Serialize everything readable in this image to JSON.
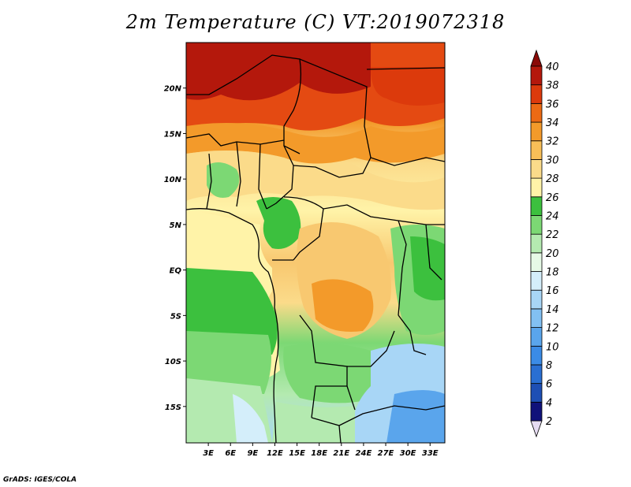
{
  "title": "2m Temperature (C) VT:2019072318",
  "credit": "GrADS: IGES/COLA",
  "map": {
    "lon_range": [
      0,
      35
    ],
    "lat_range": [
      -19,
      25
    ],
    "lon_ticks": [
      {
        "value": 3,
        "label": "3E"
      },
      {
        "value": 6,
        "label": "6E"
      },
      {
        "value": 9,
        "label": "9E"
      },
      {
        "value": 12,
        "label": "12E"
      },
      {
        "value": 15,
        "label": "15E"
      },
      {
        "value": 18,
        "label": "18E"
      },
      {
        "value": 21,
        "label": "21E"
      },
      {
        "value": 24,
        "label": "24E"
      },
      {
        "value": 27,
        "label": "27E"
      },
      {
        "value": 30,
        "label": "30E"
      },
      {
        "value": 33,
        "label": "33E"
      }
    ],
    "lat_ticks": [
      {
        "value": 20,
        "label": "20N"
      },
      {
        "value": 15,
        "label": "15N"
      },
      {
        "value": 10,
        "label": "10N"
      },
      {
        "value": 5,
        "label": "5N"
      },
      {
        "value": 0,
        "label": "EQ"
      },
      {
        "value": -5,
        "label": "5S"
      },
      {
        "value": -10,
        "label": "10S"
      },
      {
        "value": -15,
        "label": "15S"
      }
    ]
  },
  "colorbar": {
    "levels": [
      "2",
      "4",
      "6",
      "8",
      "10",
      "12",
      "14",
      "16",
      "18",
      "20",
      "22",
      "24",
      "26",
      "28",
      "30",
      "32",
      "34",
      "36",
      "38",
      "40"
    ],
    "colors": [
      "#e6dcf2",
      "#10127a",
      "#1e4fb4",
      "#2a6fd2",
      "#3b8be6",
      "#5aa5ec",
      "#82c0f2",
      "#a8d6f6",
      "#d4eefa",
      "#e6f9e6",
      "#b4eab0",
      "#7cd874",
      "#3cc03e",
      "#fff3a8",
      "#fbdb8a",
      "#f8bf58",
      "#f39a2a",
      "#ec6a14",
      "#dc3a0c",
      "#b4180c",
      "#8a0a08"
    ]
  }
}
